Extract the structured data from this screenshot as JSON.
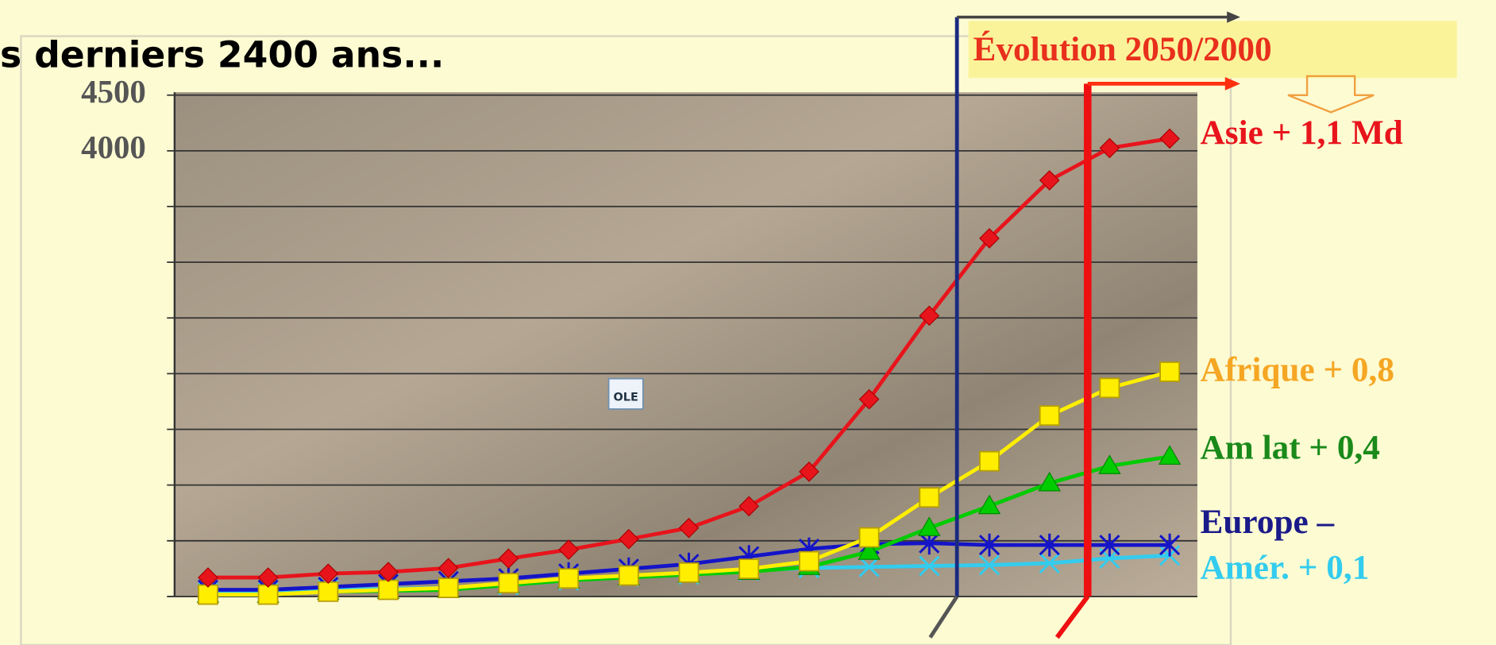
{
  "chart_data": {
    "type": "line",
    "title": "s derniers 2400 ans...",
    "annotation": "Évolution 2050/2000",
    "icon_label": "OLE",
    "categories": [
      null,
      null,
      null,
      null,
      null,
      null,
      null,
      null,
      null,
      null,
      null,
      null,
      null,
      null,
      null,
      null,
      null
    ],
    "ylim": [
      0,
      4500
    ],
    "yticks": [
      4000,
      4500
    ],
    "grid_lines": [
      0,
      500,
      1000,
      1500,
      2000,
      2500,
      3000,
      3500,
      4000,
      4500
    ],
    "series": [
      {
        "name": "Asie + 1,1 Md",
        "color": "#e8141c",
        "label_color": "#e8141c",
        "marker": "diamond",
        "values": [
          170,
          170,
          205,
          220,
          255,
          340,
          420,
          515,
          615,
          810,
          1120,
          1770,
          2520,
          3215,
          3735,
          4025,
          4110
        ]
      },
      {
        "name": "Afrique + 0,8",
        "color": "#ffee00",
        "label_color": "#f5a623",
        "marker": "square",
        "values": [
          17,
          17,
          43,
          60,
          77,
          120,
          162,
          188,
          214,
          248,
          316,
          530,
          889,
          1214,
          1624,
          1872,
          2017
        ]
      },
      {
        "name": "Am lat + 0,4",
        "color": "#00cc00",
        "label_color": "#1a8a1a",
        "marker": "triangle",
        "values": [
          17,
          17,
          43,
          51,
          60,
          103,
          145,
          171,
          197,
          222,
          265,
          402,
          615,
          812,
          1017,
          1171,
          1256
        ]
      },
      {
        "name": "Europe –",
        "color": "#1414c8",
        "label_color": "#1a1a8a",
        "marker": "asterisk",
        "values": [
          60,
          60,
          85,
          111,
          137,
          162,
          205,
          248,
          291,
          359,
          427,
          470,
          479,
          462,
          462,
          462,
          462
        ]
      },
      {
        "name": "Amér. + 0,1",
        "color": "#33ccee",
        "label_color": "#33ccee",
        "marker": "x",
        "values": [
          34,
          34,
          60,
          68,
          77,
          103,
          145,
          179,
          197,
          231,
          256,
          265,
          274,
          282,
          299,
          342,
          368
        ]
      }
    ]
  }
}
